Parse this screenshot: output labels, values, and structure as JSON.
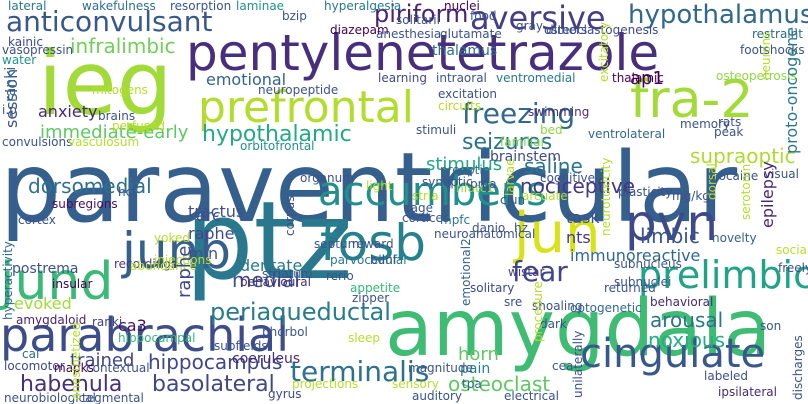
{
  "words": [
    {
      "text": "paraventricular",
      "color": "#35608d"
    },
    {
      "text": "ieg",
      "color": "#a2da37"
    },
    {
      "text": "pentylenetetrazole",
      "color": "#472f7d"
    },
    {
      "text": "ptz",
      "color": "#2a788e"
    },
    {
      "text": "amygdala",
      "color": "#3fbc73"
    },
    {
      "text": "prefrontal",
      "color": "#b2dd2d"
    },
    {
      "text": "fra-2",
      "color": "#a2da37"
    },
    {
      "text": "parabrachial",
      "color": "#3d4d8a"
    },
    {
      "text": "fosb",
      "color": "#26818e"
    },
    {
      "text": "accumbens",
      "color": "#21908d"
    },
    {
      "text": "jun",
      "color": "#d8e219"
    },
    {
      "text": "junb",
      "color": "#35608d"
    },
    {
      "text": "jund",
      "color": "#3aba76"
    },
    {
      "text": "pvn",
      "color": "#3e4989"
    },
    {
      "text": "cingulate",
      "color": "#38588c"
    },
    {
      "text": "prelimbic",
      "color": "#20a386"
    },
    {
      "text": "aversive",
      "color": "#433e85"
    },
    {
      "text": "hypothalamus",
      "color": "#31688e"
    },
    {
      "text": "anticonvulsant",
      "color": "#38588c"
    },
    {
      "text": "freezing",
      "color": "#31688e"
    },
    {
      "text": "seizures",
      "color": "#2c738e"
    },
    {
      "text": "hypothalamic",
      "color": "#23a983"
    },
    {
      "text": "piriform",
      "color": "#482475"
    },
    {
      "text": "supraoptic",
      "color": "#addc30"
    },
    {
      "text": "periaqueductal",
      "color": "#287c8e"
    },
    {
      "text": "hippocampus",
      "color": "#3f4788"
    },
    {
      "text": "terminalis",
      "color": "#2d718e"
    },
    {
      "text": "basolateral",
      "color": "#3f4788"
    },
    {
      "text": "habenula",
      "color": "#46307e"
    },
    {
      "text": "fear",
      "color": "#404688"
    },
    {
      "text": "dorsomedial",
      "color": "#2d718e"
    },
    {
      "text": "immediate-early",
      "color": "#5ec962"
    },
    {
      "text": "infralimbic",
      "color": "#70cf57"
    },
    {
      "text": "limbic",
      "color": "#39558c"
    },
    {
      "text": "arousal",
      "color": "#2c738e"
    },
    {
      "text": "nociceptive",
      "color": "#453781"
    },
    {
      "text": "stimulus",
      "color": "#22a884"
    },
    {
      "text": "medial",
      "color": "#3b528b"
    },
    {
      "text": "osteoclast",
      "color": "#5ec962"
    },
    {
      "text": "saline",
      "color": "#2a768e"
    },
    {
      "text": "emotional",
      "color": "#33638d"
    },
    {
      "text": "anxiety",
      "color": "#482878"
    },
    {
      "text": "session",
      "color": "#3b528b"
    },
    {
      "text": "tractus",
      "color": "#3e4989"
    },
    {
      "text": "raphe",
      "color": "#414487"
    },
    {
      "text": "trained",
      "color": "#5ec962"
    },
    {
      "text": "horn",
      "color": "#3b528b"
    },
    {
      "text": "task",
      "color": "#443a83"
    },
    {
      "text": "nts",
      "color": "#3b528b"
    },
    {
      "text": "min",
      "color": "#3b528b"
    },
    {
      "text": "arc",
      "color": "#471063"
    },
    {
      "text": "ca3",
      "color": "#2a788e"
    },
    {
      "text": "dentate",
      "color": "#27ad81"
    },
    {
      "text": "noxious",
      "color": "#31688e"
    },
    {
      "text": "immunoreactive",
      "color": "#a2da37"
    },
    {
      "text": "evoked",
      "color": "#26828e"
    },
    {
      "text": "pain",
      "color": "#3b528b"
    },
    {
      "text": "postrema",
      "color": "#440154"
    },
    {
      "text": "ap1",
      "color": "#3e4989"
    },
    {
      "text": "brainstem",
      "color": "#2e6e8e"
    },
    {
      "text": "thalamus",
      "color": "#2e6e8e"
    },
    {
      "text": "wakefulness",
      "color": "#21918c"
    },
    {
      "text": "laminae",
      "color": "#2a788e"
    },
    {
      "text": "hyperalgesia",
      "color": "#481f70"
    },
    {
      "text": "amygdaloid",
      "color": "#414487"
    },
    {
      "text": "ranki",
      "color": "#31688e"
    },
    {
      "text": "coeruleus",
      "color": "#472c7a"
    },
    {
      "text": "appetite",
      "color": "#35b779"
    },
    {
      "text": "optogenetic",
      "color": "#31688e"
    },
    {
      "text": "novelty",
      "color": "#35608d"
    },
    {
      "text": "epilepsy",
      "color": "#482475"
    },
    {
      "text": "parvocellular",
      "color": "#2a788e"
    },
    {
      "text": "nfatc1",
      "color": "#90d743"
    },
    {
      "text": "stria",
      "color": "#b5de2b"
    },
    {
      "text": "memory",
      "color": "#3b528b"
    },
    {
      "text": "ventrolateral",
      "color": "#31688e"
    },
    {
      "text": "preoptic",
      "color": "#31688e"
    },
    {
      "text": "swimming",
      "color": "#472d7b"
    },
    {
      "text": "orbitofrontal",
      "color": "#21918c"
    },
    {
      "text": "stimuli",
      "color": "#3b528b"
    },
    {
      "text": "learning",
      "color": "#3e4a89"
    },
    {
      "text": "ventromedial",
      "color": "#2a788e"
    },
    {
      "text": "osteoclastogenesis",
      "color": "#3e4989"
    },
    {
      "text": "restraint",
      "color": "#31688e"
    },
    {
      "text": "subregions",
      "color": "#471063"
    },
    {
      "text": "cortex",
      "color": "#3b528b"
    },
    {
      "text": "insular",
      "color": "#440154"
    },
    {
      "text": "hippocampal",
      "color": "#35b779"
    },
    {
      "text": "behavioural",
      "color": "#472d7b"
    },
    {
      "text": "reward",
      "color": "#3b528b"
    },
    {
      "text": "solitary",
      "color": "#3e4989"
    },
    {
      "text": "wistar",
      "color": "#433e85"
    },
    {
      "text": "dark",
      "color": "#3b528b"
    },
    {
      "text": "behavioral",
      "color": "#482878"
    },
    {
      "text": "electrical",
      "color": "#3b528b"
    },
    {
      "text": "ipsilateral",
      "color": "#482878"
    },
    {
      "text": "tpa",
      "color": "#31688e"
    },
    {
      "text": "gyrus",
      "color": "#3e4989"
    },
    {
      "text": "mpfc",
      "color": "#2a788e"
    },
    {
      "text": "cage",
      "color": "#3b528b"
    },
    {
      "text": "recordings",
      "color": "#443a83"
    },
    {
      "text": "familiar",
      "color": "#7ad151"
    },
    {
      "text": "bed",
      "color": "#90d743"
    },
    {
      "text": "proto-oncogene",
      "color": "#2a788e"
    },
    {
      "text": "sre",
      "color": "#3b528b"
    },
    {
      "text": "contextual",
      "color": "#3b528b"
    },
    {
      "text": "emotional2",
      "color": "#33638d"
    },
    {
      "text": "locomotor",
      "color": "#3e4989"
    },
    {
      "text": "mapks",
      "color": "#440154"
    },
    {
      "text": "cal",
      "color": "#31688e"
    },
    {
      "text": "hyperactivity",
      "color": "#31688e"
    },
    {
      "text": "lateral",
      "color": "#2a788e"
    },
    {
      "text": "resorption",
      "color": "#3b528b"
    },
    {
      "text": "kainic",
      "color": "#3e4989"
    },
    {
      "text": "vasopressin",
      "color": "#3b528b"
    },
    {
      "text": "water",
      "color": "#21918c"
    },
    {
      "text": "mitogens",
      "color": "#b5de2b"
    },
    {
      "text": "brains",
      "color": "#3b528b"
    },
    {
      "text": "perfused",
      "color": "#b5de2b"
    },
    {
      "text": "convulsions",
      "color": "#3b528b"
    },
    {
      "text": "vasculosum",
      "color": "#b5de2b"
    },
    {
      "text": "neuropeptide",
      "color": "#3b528b"
    },
    {
      "text": "anesthesia",
      "color": "#3b528b"
    },
    {
      "text": "glutamate",
      "color": "#3b528b"
    },
    {
      "text": "diazepam",
      "color": "#440154"
    },
    {
      "text": "nuclei",
      "color": "#440154"
    },
    {
      "text": "gray",
      "color": "#3b528b"
    },
    {
      "text": "dimers",
      "color": "#3b528b"
    },
    {
      "text": "footshocks",
      "color": "#3b528b"
    },
    {
      "text": "osteopetrosis",
      "color": "#90d743"
    },
    {
      "text": "rats",
      "color": "#3b528b"
    },
    {
      "text": "peak",
      "color": "#3b528b"
    },
    {
      "text": "thalamic",
      "color": "#440154"
    },
    {
      "text": "intraoral",
      "color": "#3b528b"
    },
    {
      "text": "excitation",
      "color": "#3b528b"
    },
    {
      "text": "circuits",
      "color": "#b5de2b"
    },
    {
      "text": "synaptic",
      "color": "#3b528b"
    },
    {
      "text": "pma",
      "color": "#3b528b"
    },
    {
      "text": "cognitive",
      "color": "#3b528b"
    },
    {
      "text": "arcuate",
      "color": "#b5de2b"
    },
    {
      "text": "plasticity",
      "color": "#3b528b"
    },
    {
      "text": "cocaine",
      "color": "#3b528b"
    },
    {
      "text": "visual",
      "color": "#3b528b"
    },
    {
      "text": "social",
      "color": "#b5de2b"
    },
    {
      "text": "freely",
      "color": "#3b528b"
    },
    {
      "text": "septum",
      "color": "#3b528b"
    },
    {
      "text": "light",
      "color": "#b5de2b"
    },
    {
      "text": "corpus",
      "color": "#3b528b"
    },
    {
      "text": "organum",
      "color": "#3b528b"
    },
    {
      "text": "cortices",
      "color": "#3b528b"
    },
    {
      "text": "danio",
      "color": "#3b528b"
    },
    {
      "text": "rerio",
      "color": "#3b528b"
    },
    {
      "text": "hz",
      "color": "#3b528b"
    },
    {
      "text": "yoked",
      "color": "#b5de2b"
    },
    {
      "text": "injections",
      "color": "#b5de2b"
    },
    {
      "text": "abundance",
      "color": "#b5de2b"
    },
    {
      "text": "striatum",
      "color": "#3b528b"
    },
    {
      "text": "bdnf",
      "color": "#3b528b"
    },
    {
      "text": "neuroanatomical",
      "color": "#3b528b"
    },
    {
      "text": "zipper",
      "color": "#3b528b"
    },
    {
      "text": "shoaling",
      "color": "#3b528b"
    },
    {
      "text": "returned",
      "color": "#3b528b"
    },
    {
      "text": "subnucleus",
      "color": "#3b528b"
    },
    {
      "text": "sleep",
      "color": "#b5de2b"
    },
    {
      "text": "phorbol",
      "color": "#3b528b"
    },
    {
      "text": "subfields",
      "color": "#3b528b"
    },
    {
      "text": "projections",
      "color": "#b5de2b"
    },
    {
      "text": "magnitude",
      "color": "#3b528b"
    },
    {
      "text": "sensory",
      "color": "#b5de2b"
    },
    {
      "text": "auditory",
      "color": "#3b528b"
    },
    {
      "text": "neurobiological",
      "color": "#3b528b"
    },
    {
      "text": "tegmental",
      "color": "#3b528b"
    },
    {
      "text": "labeled",
      "color": "#3b528b"
    },
    {
      "text": "discharges",
      "color": "#3b528b"
    },
    {
      "text": "son",
      "color": "#3b528b"
    },
    {
      "text": "unilaterally",
      "color": "#3b528b"
    },
    {
      "text": "cea",
      "color": "#3b528b"
    },
    {
      "text": "procedure",
      "color": "#b5de2b"
    },
    {
      "text": "anesthetized",
      "color": "#b5de2b"
    },
    {
      "text": "hct",
      "color": "#3b528b"
    },
    {
      "text": "i.p",
      "color": "#3b528b"
    },
    {
      "text": "bzip",
      "color": "#3b528b"
    },
    {
      "text": "solitarii",
      "color": "#3b528b"
    },
    {
      "text": "food",
      "color": "#3b528b"
    },
    {
      "text": "larvae",
      "color": "#b5de2b"
    },
    {
      "text": "cjun",
      "color": "#3b528b"
    },
    {
      "text": "mg/kg",
      "color": "#3b528b"
    },
    {
      "text": "dorsal",
      "color": "#b5de2b"
    },
    {
      "text": "neurotoxicity",
      "color": "#b5de2b"
    },
    {
      "text": "subnuclei",
      "color": "#3b528b"
    },
    {
      "text": "excitatory",
      "color": "#b5de2b"
    },
    {
      "text": "serotonin",
      "color": "#b5de2b"
    },
    {
      "text": "neurons",
      "color": "#b5de2b"
    }
  ]
}
